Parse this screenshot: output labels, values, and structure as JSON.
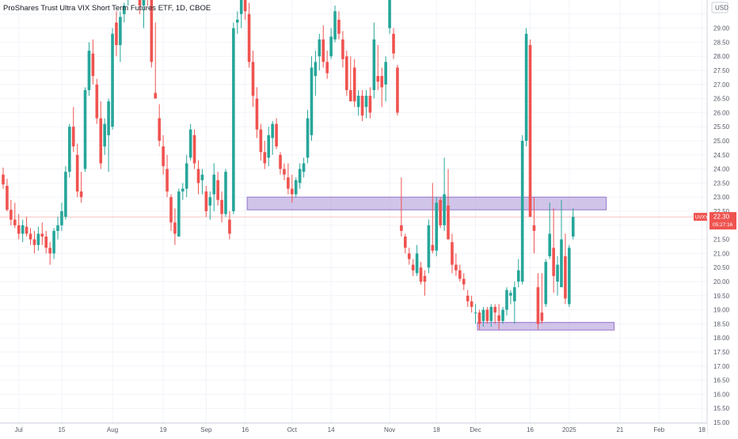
{
  "header": {
    "title": "ProShares Trust Ultra VIX Short Term Futures ETF, 1D, CBOE",
    "currency": "USD"
  },
  "colors": {
    "up": "#26a69a",
    "down": "#ef5350",
    "zone_fill": "#b39ddb",
    "zone_stroke": "#9575cd",
    "price_line": "#ef5350",
    "grid": "#f0f3fa",
    "axis_border": "#d1d4dc"
  },
  "chart_data": {
    "type": "candlestick",
    "symbol": "UVXY",
    "last_price": "22.30",
    "countdown": "05:27:16",
    "ylim": [
      15.0,
      30.0
    ],
    "y_ticks": [
      "15.00",
      "15.50",
      "16.00",
      "16.50",
      "17.00",
      "17.50",
      "18.00",
      "18.50",
      "19.00",
      "19.50",
      "20.00",
      "20.50",
      "21.00",
      "21.50",
      "22.00",
      "22.50",
      "23.00",
      "23.50",
      "24.00",
      "24.50",
      "25.00",
      "25.50",
      "26.00",
      "26.50",
      "27.00",
      "27.50",
      "28.00",
      "28.50",
      "29.00",
      "29.50"
    ],
    "x_labels": [
      {
        "label": "Jul",
        "bar": 4
      },
      {
        "label": "15",
        "bar": 15
      },
      {
        "label": "Aug",
        "bar": 28
      },
      {
        "label": "19",
        "bar": 41
      },
      {
        "label": "Sep",
        "bar": 52
      },
      {
        "label": "16",
        "bar": 62
      },
      {
        "label": "Oct",
        "bar": 74
      },
      {
        "label": "14",
        "bar": 84
      },
      {
        "label": "Nov",
        "bar": 99
      },
      {
        "label": "18",
        "bar": 111
      },
      {
        "label": "Dec",
        "bar": 121
      },
      {
        "label": "16",
        "bar": 135
      },
      {
        "label": "2025",
        "bar": 145
      },
      {
        "label": "21",
        "bar": 158
      },
      {
        "label": "Feb",
        "bar": 168
      },
      {
        "label": "18",
        "bar": 179
      }
    ],
    "zones": [
      {
        "top": 23.0,
        "bottom": 22.55,
        "bar_start": 62.5,
        "bar_end": 154.5
      },
      {
        "top": 18.55,
        "bottom": 18.28,
        "bar_start": 121.5,
        "bar_end": 156.5
      }
    ],
    "candles": [
      [
        0,
        23.8,
        24.05,
        23.3,
        23.45
      ],
      [
        1,
        23.4,
        23.65,
        22.5,
        22.55
      ],
      [
        2,
        22.55,
        22.9,
        22.0,
        22.2
      ],
      [
        3,
        22.2,
        22.8,
        21.9,
        22.0
      ],
      [
        4,
        22.0,
        22.4,
        21.5,
        21.7
      ],
      [
        5,
        21.7,
        22.2,
        21.4,
        22.0
      ],
      [
        6,
        21.95,
        22.3,
        21.6,
        21.7
      ],
      [
        7,
        21.7,
        21.9,
        21.3,
        21.5
      ],
      [
        8,
        21.5,
        21.8,
        21.0,
        21.3
      ],
      [
        9,
        21.3,
        21.95,
        21.1,
        21.7
      ],
      [
        10,
        21.7,
        22.1,
        21.3,
        21.6
      ],
      [
        11,
        21.6,
        21.8,
        21.0,
        21.2
      ],
      [
        12,
        21.2,
        21.4,
        20.6,
        21.0
      ],
      [
        13,
        21.0,
        21.9,
        20.8,
        21.8
      ],
      [
        14,
        21.8,
        22.3,
        21.5,
        22.0
      ],
      [
        15,
        22.0,
        22.8,
        21.8,
        22.5
      ],
      [
        16,
        22.3,
        24.1,
        22.2,
        23.9
      ],
      [
        17,
        23.9,
        25.6,
        23.7,
        25.5
      ],
      [
        18,
        25.5,
        26.2,
        24.6,
        24.8
      ],
      [
        19,
        24.5,
        24.9,
        23.0,
        23.2
      ],
      [
        20,
        23.2,
        23.9,
        22.8,
        23.0
      ],
      [
        21,
        24.0,
        26.9,
        23.9,
        26.8
      ],
      [
        22,
        26.8,
        28.5,
        26.6,
        28.2
      ],
      [
        23,
        28.1,
        28.6,
        27.0,
        27.3
      ],
      [
        24,
        27.0,
        27.2,
        25.6,
        25.8
      ],
      [
        25,
        25.8,
        26.4,
        24.0,
        24.2
      ],
      [
        26,
        24.8,
        25.8,
        24.5,
        25.6
      ],
      [
        27,
        25.2,
        26.5,
        23.9,
        26.4
      ],
      [
        28,
        25.5,
        29.0,
        25.4,
        28.8
      ],
      [
        29,
        29.2,
        29.6,
        28.0,
        28.4
      ],
      [
        30,
        28.4,
        29.6,
        27.8,
        29.4
      ],
      [
        31,
        29.5,
        29.9,
        29.2,
        29.8
      ],
      [
        32,
        30.2,
        31.5,
        29.8,
        30.8
      ],
      [
        33,
        30.5,
        31.8,
        30.0,
        31.2
      ],
      [
        34,
        31.2,
        31.8,
        30.0,
        30.3
      ],
      [
        35,
        30.0,
        30.9,
        29.5,
        29.8
      ],
      [
        36,
        29.8,
        30.4,
        29.0,
        30.2
      ],
      [
        37,
        30.2,
        30.6,
        29.8,
        30.0
      ],
      [
        38,
        30.0,
        30.5,
        27.6,
        27.8
      ],
      [
        39,
        26.7,
        29.2,
        26.5,
        26.5
      ],
      [
        40,
        25.8,
        26.3,
        24.8,
        25.0
      ],
      [
        41,
        24.8,
        25.2,
        23.8,
        24.1
      ],
      [
        42,
        24.0,
        24.5,
        23.0,
        23.2
      ],
      [
        43,
        23.0,
        23.1,
        21.8,
        22.1
      ],
      [
        44,
        22.1,
        22.6,
        21.3,
        21.7
      ],
      [
        45,
        21.6,
        23.3,
        21.6,
        23.2
      ],
      [
        46,
        23.2,
        23.5,
        22.9,
        23.3
      ],
      [
        47,
        23.3,
        24.5,
        23.0,
        24.2
      ],
      [
        48,
        24.4,
        25.6,
        24.3,
        25.4
      ],
      [
        49,
        25.2,
        25.4,
        24.0,
        24.2
      ],
      [
        50,
        24.0,
        24.3,
        23.1,
        23.5
      ],
      [
        51,
        23.6,
        24.0,
        23.1,
        23.8
      ],
      [
        52,
        23.2,
        23.4,
        22.3,
        22.5
      ],
      [
        53,
        22.7,
        23.2,
        22.2,
        23.0
      ],
      [
        54,
        23.1,
        24.2,
        22.5,
        23.8
      ],
      [
        55,
        23.6,
        23.9,
        22.7,
        22.9
      ],
      [
        56,
        22.9,
        23.2,
        22.1,
        22.4
      ],
      [
        57,
        22.4,
        24.0,
        22.3,
        23.9
      ],
      [
        58,
        22.2,
        22.5,
        21.5,
        21.7
      ],
      [
        59,
        22.5,
        29.2,
        22.4,
        29.0
      ],
      [
        60,
        29.2,
        29.6,
        28.8,
        29.3
      ],
      [
        61,
        29.5,
        30.9,
        29.0,
        30.8
      ],
      [
        62,
        30.9,
        31.2,
        29.3,
        29.6
      ],
      [
        63,
        29.5,
        29.9,
        27.6,
        27.8
      ],
      [
        64,
        27.8,
        28.2,
        26.2,
        26.6
      ],
      [
        65,
        26.5,
        26.9,
        25.1,
        25.4
      ],
      [
        66,
        25.4,
        25.6,
        24.3,
        24.6
      ],
      [
        67,
        24.6,
        25.0,
        24.0,
        24.2
      ],
      [
        68,
        24.4,
        25.5,
        24.1,
        25.2
      ],
      [
        69,
        25.1,
        25.7,
        24.5,
        25.6
      ],
      [
        70,
        25.6,
        25.8,
        24.7,
        24.8
      ],
      [
        71,
        24.5,
        24.6,
        23.8,
        24.0
      ],
      [
        72,
        24.0,
        24.2,
        23.6,
        23.8
      ],
      [
        73,
        23.7,
        24.2,
        23.1,
        23.3
      ],
      [
        74,
        23.3,
        23.8,
        22.8,
        23.1
      ],
      [
        75,
        23.1,
        23.7,
        23.0,
        23.6
      ],
      [
        76,
        23.5,
        24.2,
        23.3,
        24.0
      ],
      [
        77,
        23.9,
        24.4,
        23.7,
        24.2
      ],
      [
        78,
        24.4,
        26.1,
        24.2,
        25.8
      ],
      [
        79,
        25.2,
        28.0,
        25.0,
        27.6
      ],
      [
        80,
        27.3,
        28.2,
        26.6,
        27.8
      ],
      [
        81,
        28.0,
        28.8,
        27.5,
        28.6
      ],
      [
        82,
        28.6,
        29.1,
        27.6,
        27.8
      ],
      [
        83,
        27.8,
        28.2,
        27.2,
        27.4
      ],
      [
        84,
        28.0,
        29.0,
        27.9,
        28.7
      ],
      [
        85,
        28.6,
        29.8,
        28.5,
        29.6
      ],
      [
        86,
        29.3,
        29.6,
        28.6,
        28.8
      ],
      [
        87,
        28.6,
        28.9,
        27.6,
        27.9
      ],
      [
        88,
        28.0,
        28.2,
        26.6,
        26.8
      ],
      [
        89,
        26.8,
        28.0,
        26.5,
        26.4
      ],
      [
        90,
        27.6,
        27.9,
        26.2,
        26.4
      ],
      [
        91,
        26.2,
        26.8,
        25.9,
        26.6
      ],
      [
        92,
        26.6,
        26.8,
        25.7,
        25.9
      ],
      [
        93,
        26.2,
        26.8,
        25.8,
        26.6
      ],
      [
        94,
        26.6,
        26.9,
        25.8,
        26.0
      ],
      [
        95,
        26.8,
        29.2,
        26.5,
        28.6
      ],
      [
        96,
        27.3,
        28.4,
        26.8,
        27.1
      ],
      [
        97,
        27.3,
        27.6,
        26.2,
        26.9
      ],
      [
        98,
        27.0,
        28.0,
        26.4,
        27.8
      ],
      [
        99,
        29.0,
        31.0,
        28.8,
        30.8
      ],
      [
        100,
        28.8,
        29.0,
        27.9,
        28.1
      ],
      [
        101,
        27.6,
        27.7,
        25.9,
        26.0
      ],
      [
        102,
        22.0,
        23.7,
        21.6,
        21.8
      ],
      [
        103,
        21.6,
        21.7,
        21.0,
        21.2
      ],
      [
        104,
        21.0,
        21.2,
        20.6,
        20.8
      ],
      [
        105,
        20.6,
        20.8,
        20.2,
        20.4
      ],
      [
        106,
        20.3,
        21.3,
        20.2,
        21.0
      ],
      [
        107,
        20.5,
        20.7,
        19.9,
        20.0
      ],
      [
        108,
        20.2,
        20.4,
        19.5,
        20.0
      ],
      [
        109,
        20.5,
        22.2,
        20.3,
        22.0
      ],
      [
        110,
        21.3,
        23.5,
        21.0,
        21.1
      ],
      [
        111,
        21.1,
        23.0,
        20.9,
        22.8
      ],
      [
        112,
        22.9,
        23.0,
        21.9,
        22.0
      ],
      [
        113,
        22.0,
        24.4,
        21.8,
        23.1
      ],
      [
        114,
        22.7,
        24.0,
        21.5,
        21.5
      ],
      [
        115,
        21.4,
        21.7,
        20.3,
        20.6
      ],
      [
        116,
        20.6,
        21.0,
        20.2,
        20.4
      ],
      [
        117,
        20.4,
        20.6,
        20.0,
        20.1
      ],
      [
        118,
        20.1,
        20.3,
        19.7,
        19.9
      ],
      [
        119,
        19.5,
        19.7,
        19.1,
        19.3
      ],
      [
        120,
        19.3,
        19.5,
        18.9,
        19.1
      ],
      [
        121,
        18.9,
        19.2,
        18.5,
        18.9
      ],
      [
        122,
        18.9,
        19.0,
        18.3,
        18.5
      ],
      [
        123,
        18.6,
        19.1,
        18.4,
        19.0
      ],
      [
        124,
        19.0,
        19.1,
        18.5,
        18.6
      ],
      [
        125,
        18.6,
        19.2,
        18.4,
        19.1
      ],
      [
        126,
        19.1,
        19.2,
        18.5,
        18.9
      ],
      [
        127,
        18.8,
        19.2,
        18.3,
        18.6
      ],
      [
        128,
        18.6,
        19.1,
        18.5,
        19.0
      ],
      [
        129,
        19.0,
        19.8,
        18.8,
        19.7
      ],
      [
        130,
        19.5,
        19.7,
        19.2,
        19.6
      ],
      [
        131,
        19.3,
        20.0,
        18.5,
        19.8
      ],
      [
        132,
        20.0,
        20.8,
        19.8,
        20.4
      ],
      [
        133,
        20.0,
        25.2,
        19.9,
        25.0
      ],
      [
        134,
        25.0,
        29.0,
        24.8,
        28.8
      ],
      [
        135,
        28.4,
        28.6,
        22.3,
        22.3
      ],
      [
        136,
        22.0,
        23.0,
        21.0,
        21.8
      ],
      [
        137,
        19.8,
        20.3,
        18.3,
        18.5
      ],
      [
        138,
        18.9,
        20.3,
        18.5,
        18.6
      ],
      [
        139,
        19.2,
        20.8,
        19.1,
        20.7
      ],
      [
        140,
        20.9,
        22.8,
        20.8,
        21.7
      ],
      [
        141,
        21.2,
        22.6,
        19.6,
        20.2
      ],
      [
        142,
        20.0,
        20.9,
        19.5,
        20.6
      ],
      [
        143,
        19.8,
        22.9,
        19.8,
        21.5
      ],
      [
        144,
        20.9,
        21.7,
        19.2,
        19.4
      ],
      [
        145,
        19.2,
        21.3,
        19.1,
        21.2
      ],
      [
        146,
        21.6,
        22.6,
        21.5,
        22.3
      ]
    ]
  }
}
